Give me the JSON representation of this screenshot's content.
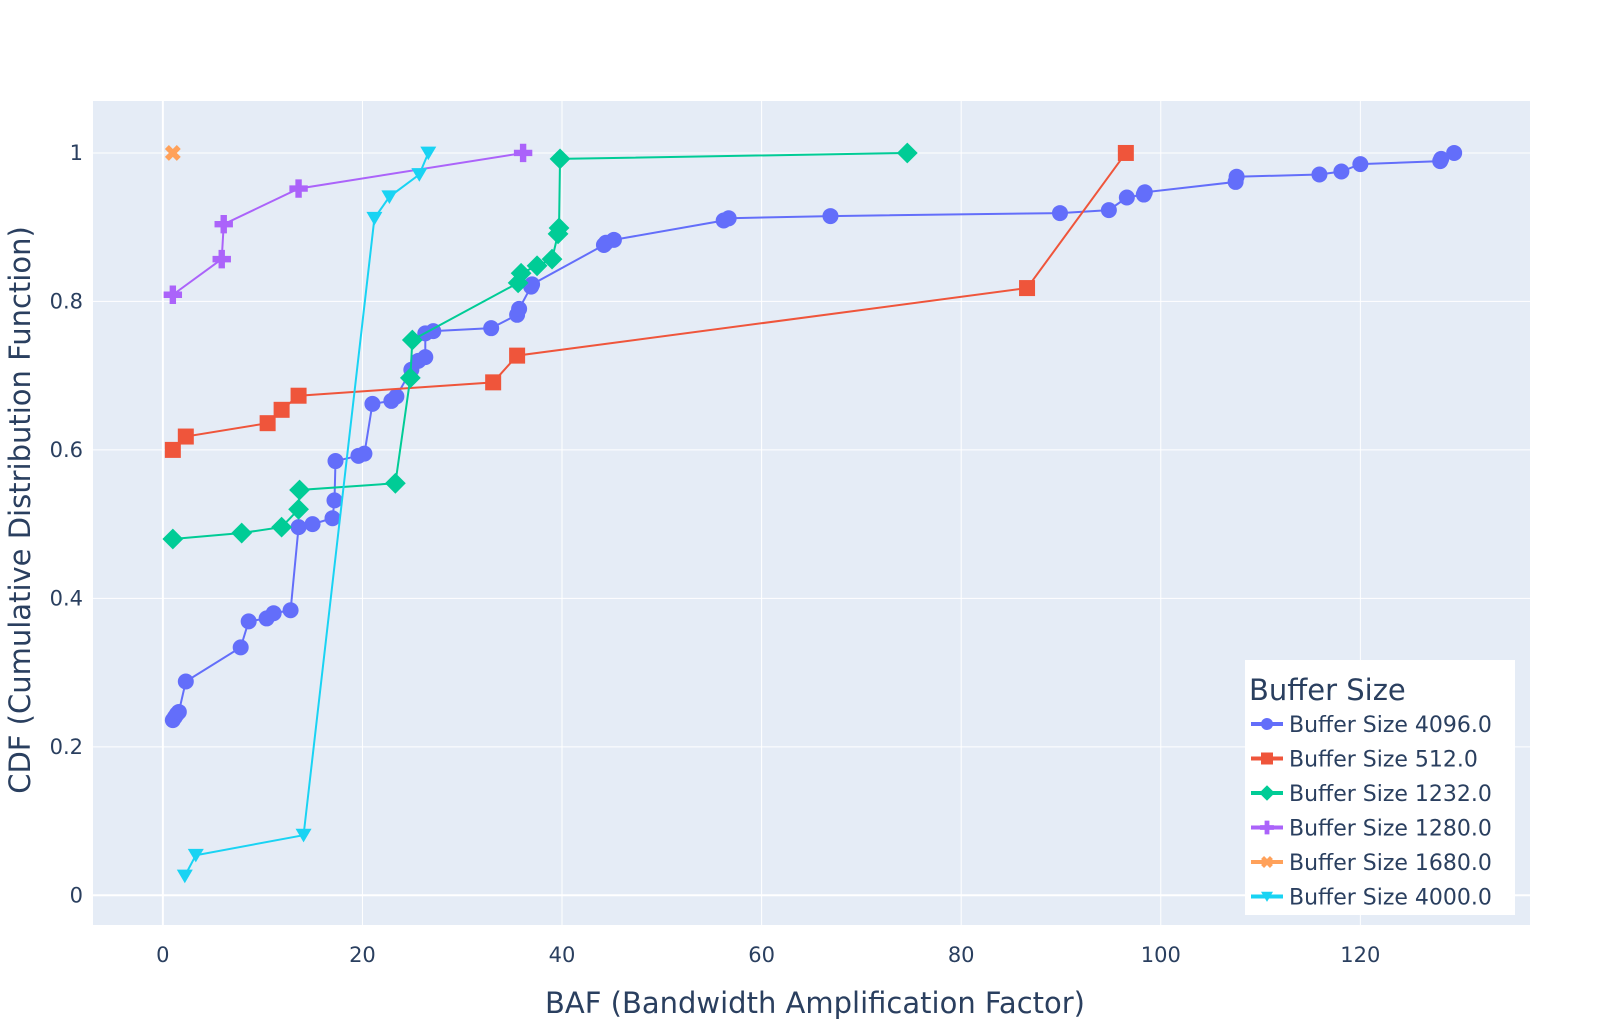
{
  "chart_data": {
    "type": "line",
    "xlabel": "BAF (Bandwidth Amplification Factor)",
    "ylabel": "CDF (Cumulative Distribution Function)",
    "xlim": [
      -7,
      137
    ],
    "ylim": [
      -0.04,
      1.07
    ],
    "x_ticks": [
      0,
      20,
      40,
      60,
      80,
      100,
      120
    ],
    "y_ticks": [
      0,
      0.2,
      0.4,
      0.6,
      0.8,
      1
    ],
    "y_tick_labels": [
      "0",
      "0.2",
      "0.4",
      "0.6",
      "0.8",
      "1"
    ],
    "grid": true,
    "plot_background": "#e5ecf6",
    "legend": {
      "title": "Buffer Size",
      "placement": "bottom-right"
    },
    "series": [
      {
        "name": "Buffer Size 4096.0",
        "color": "#636efa",
        "marker": "circle",
        "points": [
          [
            1.0,
            0.236
          ],
          [
            1.2,
            0.24
          ],
          [
            1.4,
            0.244
          ],
          [
            1.6,
            0.247
          ],
          [
            2.3,
            0.288
          ],
          [
            7.8,
            0.334
          ],
          [
            8.6,
            0.369
          ],
          [
            10.4,
            0.373
          ],
          [
            11.1,
            0.38
          ],
          [
            12.8,
            0.384
          ],
          [
            13.6,
            0.496
          ],
          [
            15.0,
            0.5
          ],
          [
            17.0,
            0.508
          ],
          [
            17.2,
            0.532
          ],
          [
            17.3,
            0.585
          ],
          [
            19.6,
            0.592
          ],
          [
            20.2,
            0.595
          ],
          [
            21.0,
            0.662
          ],
          [
            22.9,
            0.666
          ],
          [
            23.4,
            0.672
          ],
          [
            24.9,
            0.708
          ],
          [
            25.6,
            0.72
          ],
          [
            26.3,
            0.725
          ],
          [
            26.3,
            0.757
          ],
          [
            27.1,
            0.76
          ],
          [
            32.9,
            0.764
          ],
          [
            35.5,
            0.782
          ],
          [
            35.7,
            0.79
          ],
          [
            36.9,
            0.82
          ],
          [
            37.0,
            0.823
          ],
          [
            44.2,
            0.876
          ],
          [
            44.4,
            0.879
          ],
          [
            45.2,
            0.883
          ],
          [
            56.2,
            0.909
          ],
          [
            56.7,
            0.912
          ],
          [
            66.9,
            0.915
          ],
          [
            89.9,
            0.919
          ],
          [
            94.8,
            0.923
          ],
          [
            96.6,
            0.94
          ],
          [
            98.3,
            0.944
          ],
          [
            98.4,
            0.947
          ],
          [
            107.5,
            0.961
          ],
          [
            107.6,
            0.968
          ],
          [
            115.9,
            0.971
          ],
          [
            118.1,
            0.975
          ],
          [
            120.0,
            0.985
          ],
          [
            128.0,
            0.989
          ],
          [
            128.1,
            0.992
          ],
          [
            129.4,
            1.0
          ]
        ]
      },
      {
        "name": "Buffer Size 512.0",
        "color": "#ef553b",
        "marker": "square",
        "points": [
          [
            1.0,
            0.6
          ],
          [
            2.3,
            0.618
          ],
          [
            10.5,
            0.636
          ],
          [
            11.9,
            0.654
          ],
          [
            13.6,
            0.673
          ],
          [
            33.1,
            0.691
          ],
          [
            35.5,
            0.727
          ],
          [
            86.6,
            0.818
          ],
          [
            96.5,
            1.0
          ]
        ]
      },
      {
        "name": "Buffer Size 1232.0",
        "color": "#00cc96",
        "marker": "diamond",
        "points": [
          [
            1.0,
            0.48
          ],
          [
            7.9,
            0.488
          ],
          [
            11.9,
            0.496
          ],
          [
            13.6,
            0.52
          ],
          [
            13.7,
            0.546
          ],
          [
            23.3,
            0.555
          ],
          [
            24.8,
            0.697
          ],
          [
            25.0,
            0.748
          ],
          [
            35.6,
            0.825
          ],
          [
            35.9,
            0.838
          ],
          [
            37.5,
            0.848
          ],
          [
            39.0,
            0.857
          ],
          [
            39.6,
            0.891
          ],
          [
            39.7,
            0.899
          ],
          [
            39.8,
            0.992
          ],
          [
            74.6,
            1.0
          ]
        ]
      },
      {
        "name": "Buffer Size 1280.0",
        "color": "#ab63fa",
        "marker": "cross",
        "points": [
          [
            1.0,
            0.809
          ],
          [
            5.9,
            0.857
          ],
          [
            6.1,
            0.904
          ],
          [
            13.6,
            0.952
          ],
          [
            36.1,
            1.0
          ]
        ]
      },
      {
        "name": "Buffer Size 1680.0",
        "color": "#ffa15a",
        "marker": "x",
        "points": [
          [
            1.0,
            1.0
          ]
        ]
      },
      {
        "name": "Buffer Size 4000.0",
        "color": "#19d3f3",
        "marker": "triangle-down",
        "points": [
          [
            2.2,
            0.026
          ],
          [
            3.3,
            0.054
          ],
          [
            14.1,
            0.081
          ],
          [
            21.2,
            0.912
          ],
          [
            22.7,
            0.941
          ],
          [
            25.7,
            0.971
          ],
          [
            26.6,
            1.0
          ]
        ]
      }
    ]
  }
}
